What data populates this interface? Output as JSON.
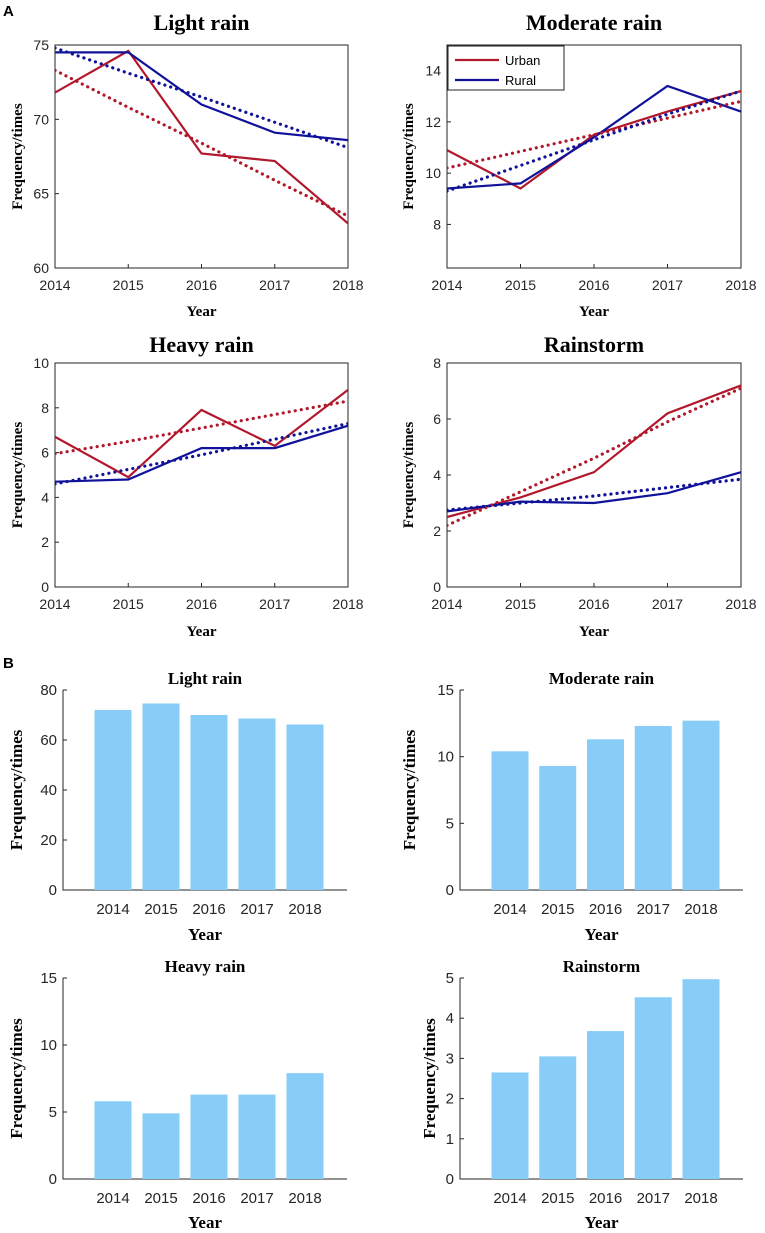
{
  "panel_labels": {
    "a": "A",
    "b": "B"
  },
  "colors": {
    "urban": "#b2182b",
    "rural": "#10139a",
    "bar": "#87cdf7",
    "axis": "#262626"
  },
  "legend": {
    "urban": "Urban",
    "rural": "Rural"
  },
  "chart_data": [
    {
      "type": "line",
      "panel": "A",
      "title": "Light rain",
      "xlabel": "Year",
      "ylabel": "Frequency/times",
      "x": [
        2014,
        2015,
        2016,
        2017,
        2018
      ],
      "xticks": [
        "2014",
        "2015",
        "2016",
        "2017",
        "2018"
      ],
      "ylim": [
        60,
        75
      ],
      "yticks": [
        60,
        65,
        70,
        75
      ],
      "series": [
        {
          "name": "Urban",
          "values": [
            71.8,
            74.6,
            67.7,
            67.2,
            63.0
          ]
        },
        {
          "name": "Rural",
          "values": [
            74.5,
            74.5,
            71.0,
            69.1,
            68.6
          ]
        },
        {
          "name": "Urban trend",
          "values": [
            73.3,
            70.8,
            68.4,
            65.9,
            63.5
          ]
        },
        {
          "name": "Rural trend",
          "values": [
            74.8,
            73.1,
            71.5,
            69.8,
            68.1
          ]
        }
      ]
    },
    {
      "type": "line",
      "panel": "A",
      "title": "Moderate rain",
      "xlabel": "Year",
      "ylabel": "Frequency/times",
      "x": [
        2014,
        2015,
        2016,
        2017,
        2018
      ],
      "xticks": [
        "2014",
        "2015",
        "2016",
        "2017",
        "2018"
      ],
      "ylim": [
        6.3,
        15
      ],
      "yticks": [
        8,
        10,
        12,
        14
      ],
      "legend": true,
      "series": [
        {
          "name": "Urban",
          "values": [
            10.9,
            9.4,
            11.5,
            12.4,
            13.2
          ]
        },
        {
          "name": "Rural",
          "values": [
            9.4,
            9.6,
            11.4,
            13.4,
            12.4
          ]
        },
        {
          "name": "Urban trend",
          "values": [
            10.2,
            10.85,
            11.5,
            12.15,
            12.8
          ]
        },
        {
          "name": "Rural trend",
          "values": [
            9.3,
            10.3,
            11.3,
            12.3,
            13.2
          ]
        }
      ]
    },
    {
      "type": "line",
      "panel": "A",
      "title": "Heavy rain",
      "xlabel": "Year",
      "ylabel": "Frequency/times",
      "x": [
        2014,
        2015,
        2016,
        2017,
        2018
      ],
      "xticks": [
        "2014",
        "2015",
        "2016",
        "2017",
        "2018"
      ],
      "ylim": [
        0,
        10
      ],
      "yticks": [
        0,
        2,
        4,
        6,
        8,
        10
      ],
      "series": [
        {
          "name": "Urban",
          "values": [
            6.7,
            4.9,
            7.9,
            6.3,
            8.8
          ]
        },
        {
          "name": "Rural",
          "values": [
            4.7,
            4.8,
            6.2,
            6.2,
            7.2
          ]
        },
        {
          "name": "Urban trend",
          "values": [
            5.95,
            6.5,
            7.1,
            7.7,
            8.3
          ]
        },
        {
          "name": "Rural trend",
          "values": [
            4.6,
            5.25,
            5.9,
            6.6,
            7.3
          ]
        }
      ]
    },
    {
      "type": "line",
      "panel": "A",
      "title": "Rainstorm",
      "xlabel": "Year",
      "ylabel": "Frequency/times",
      "x": [
        2014,
        2015,
        2016,
        2017,
        2018
      ],
      "xticks": [
        "2014",
        "2015",
        "2016",
        "2017",
        "2018"
      ],
      "ylim": [
        0,
        8
      ],
      "yticks": [
        0,
        2,
        4,
        6,
        8
      ],
      "series": [
        {
          "name": "Urban",
          "values": [
            2.5,
            3.2,
            4.1,
            6.2,
            7.2
          ]
        },
        {
          "name": "Rural",
          "values": [
            2.7,
            3.05,
            3.0,
            3.35,
            4.1
          ]
        },
        {
          "name": "Urban trend",
          "values": [
            2.2,
            3.4,
            4.6,
            5.9,
            7.1
          ]
        },
        {
          "name": "Rural trend",
          "values": [
            2.75,
            3.0,
            3.25,
            3.55,
            3.85
          ]
        }
      ]
    },
    {
      "type": "bar",
      "panel": "B",
      "title": "Light rain",
      "xlabel": "Year",
      "ylabel": "Frequency/times",
      "categories": [
        "2014",
        "2015",
        "2016",
        "2017",
        "2018"
      ],
      "values": [
        72,
        74.6,
        70,
        68.6,
        66.2
      ],
      "ylim": [
        0,
        80
      ],
      "yticks": [
        0,
        20,
        40,
        60,
        80
      ]
    },
    {
      "type": "bar",
      "panel": "B",
      "title": "Moderate rain",
      "xlabel": "Year",
      "ylabel": "Frequency/times",
      "categories": [
        "2014",
        "2015",
        "2016",
        "2017",
        "2018"
      ],
      "values": [
        10.4,
        9.3,
        11.3,
        12.3,
        12.7
      ],
      "ylim": [
        0,
        15
      ],
      "yticks": [
        0,
        5,
        10,
        15
      ]
    },
    {
      "type": "bar",
      "panel": "B",
      "title": "Heavy rain",
      "xlabel": "Year",
      "ylabel": "Frequency/times",
      "categories": [
        "2014",
        "2015",
        "2016",
        "2017",
        "2018"
      ],
      "values": [
        5.8,
        4.9,
        6.3,
        6.3,
        7.9
      ],
      "ylim": [
        0,
        15
      ],
      "yticks": [
        0,
        5,
        10,
        15
      ]
    },
    {
      "type": "bar",
      "panel": "B",
      "title": "Rainstorm",
      "xlabel": "Year",
      "ylabel": "Frequency/times",
      "categories": [
        "2014",
        "2015",
        "2016",
        "2017",
        "2018"
      ],
      "values": [
        2.65,
        3.05,
        3.68,
        4.52,
        4.97
      ],
      "ylim": [
        0,
        5
      ],
      "yticks": [
        0,
        1,
        2,
        3,
        4,
        5
      ]
    }
  ]
}
